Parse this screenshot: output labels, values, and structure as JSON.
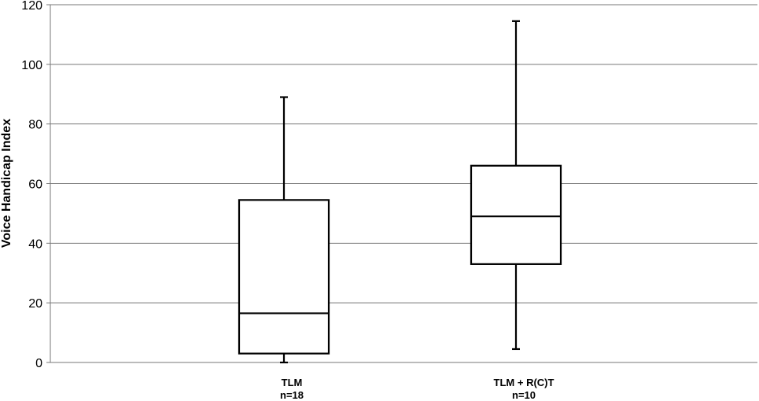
{
  "chart_data": {
    "type": "boxplot",
    "title": "",
    "xlabel": "",
    "ylabel": "Voice Handicap Index",
    "ylim": [
      0,
      120
    ],
    "yticks": [
      0,
      20,
      40,
      60,
      80,
      100,
      120
    ],
    "grid": true,
    "categories": [
      {
        "label": "TLM",
        "sublabel": "n=18"
      },
      {
        "label": "TLM + R(C)T",
        "sublabel": "n=10"
      }
    ],
    "boxes": [
      {
        "category": "TLM",
        "min": 0,
        "q1": 3,
        "median": 16.5,
        "q3": 54.5,
        "max": 89
      },
      {
        "category": "TLM + R(C)T",
        "min": 4.5,
        "q1": 33,
        "median": 49,
        "q3": 66,
        "max": 114.5
      }
    ]
  }
}
